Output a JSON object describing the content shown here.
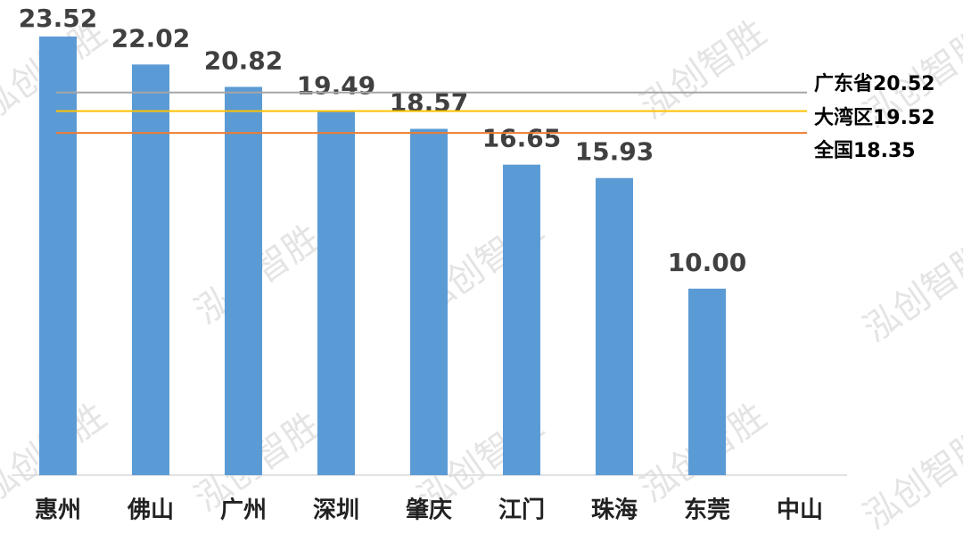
{
  "chart_data": {
    "type": "bar",
    "categories": [
      "惠州",
      "佛山",
      "广州",
      "深圳",
      "肇庆",
      "江门",
      "珠海",
      "东莞",
      "中山"
    ],
    "values": [
      23.52,
      22.02,
      20.82,
      19.49,
      18.57,
      16.65,
      15.93,
      10.0,
      null
    ],
    "value_labels": [
      "23.52",
      "22.02",
      "20.82",
      "19.49",
      "18.57",
      "16.65",
      "15.93",
      "10.00",
      null
    ],
    "color": "#5b9bd5",
    "ylim": [
      0,
      25
    ],
    "reference_lines": [
      {
        "label": "广东省20.52",
        "value": 20.52,
        "color": "#a5a5a5"
      },
      {
        "label": "大湾区19.52",
        "value": 19.52,
        "color": "#ffc000"
      },
      {
        "label": "全国18.35",
        "value": 18.35,
        "color": "#ed7d31"
      }
    ],
    "watermark": "泓创智胜"
  }
}
